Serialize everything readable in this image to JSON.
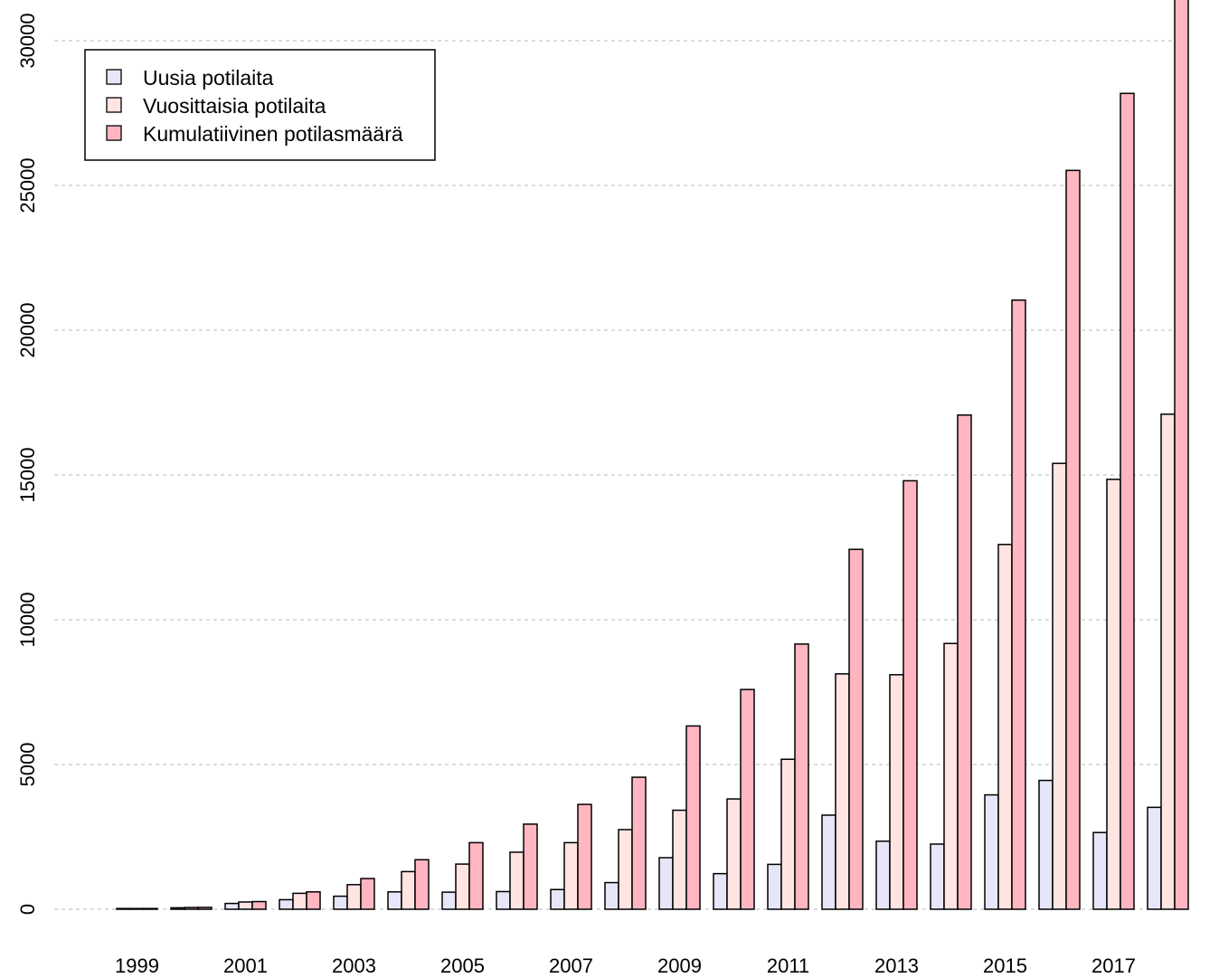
{
  "chart_data": {
    "type": "bar",
    "title": "",
    "xlabel": "",
    "ylabel": "",
    "ylim": [
      0,
      31000
    ],
    "yticks": [
      0,
      5000,
      10000,
      15000,
      20000,
      25000,
      30000
    ],
    "grid": "horizontal dashed",
    "legend_position": "top-left",
    "categories": [
      "1999",
      "2000",
      "2001",
      "2002",
      "2003",
      "2004",
      "2005",
      "2006",
      "2007",
      "2008",
      "2009",
      "2010",
      "2011",
      "2012",
      "2013",
      "2014",
      "2015",
      "2016",
      "2017",
      "2018"
    ],
    "xtick_labels": [
      "1999",
      "2001",
      "2003",
      "2005",
      "2007",
      "2009",
      "2011",
      "2013",
      "2015",
      "2017"
    ],
    "series": [
      {
        "name": "Uusia potilaita",
        "color": "#E6E6F8",
        "values": [
          15,
          50,
          200,
          330,
          450,
          600,
          590,
          610,
          680,
          920,
          1780,
          1230,
          1550,
          3250,
          2350,
          2250,
          3950,
          4450,
          2650,
          3520
        ]
      },
      {
        "name": "Vuosittaisia potilaita",
        "color": "#FFE4E2",
        "values": [
          15,
          60,
          250,
          550,
          850,
          1300,
          1560,
          1970,
          2300,
          2750,
          3420,
          3810,
          5180,
          8130,
          8100,
          9180,
          12600,
          15400,
          14850,
          17100
        ]
      },
      {
        "name": "Kumulatiivinen potilasmäärä",
        "color": "#FFB6C1",
        "values": [
          15,
          65,
          265,
          600,
          1060,
          1710,
          2300,
          2940,
          3620,
          4560,
          6330,
          7590,
          9160,
          12430,
          14800,
          17070,
          21040,
          25520,
          28180,
          31700
        ]
      }
    ]
  }
}
